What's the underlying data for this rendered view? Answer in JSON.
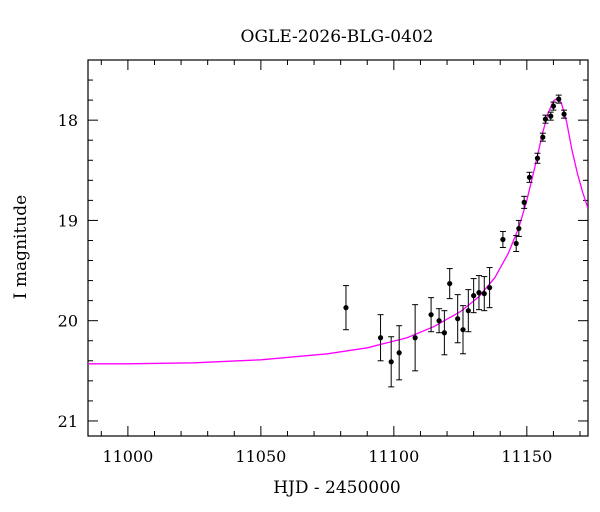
{
  "chart_data": {
    "type": "scatter",
    "title": "OGLE-2026-BLG-0402",
    "xlabel": "HJD - 2450000",
    "ylabel": "I magnitude",
    "xlim": [
      10985,
      11173
    ],
    "ylim": [
      21.15,
      17.4
    ],
    "y_inverted": true,
    "x_ticks": [
      11000,
      11050,
      11100,
      11150
    ],
    "y_ticks": [
      18,
      19,
      20,
      21
    ],
    "grid": false,
    "colors": {
      "points": "#000000",
      "model": "#ff00ff",
      "axes": "#000000"
    },
    "series": [
      {
        "type": "scatter",
        "points": [
          {
            "x": 11082,
            "y": 19.87,
            "err": 0.22
          },
          {
            "x": 11095,
            "y": 20.17,
            "err": 0.23
          },
          {
            "x": 11099,
            "y": 20.41,
            "err": 0.25
          },
          {
            "x": 11102,
            "y": 20.32,
            "err": 0.27
          },
          {
            "x": 11108,
            "y": 20.17,
            "err": 0.33
          },
          {
            "x": 11114,
            "y": 19.94,
            "err": 0.17
          },
          {
            "x": 11117,
            "y": 20.0,
            "err": 0.12
          },
          {
            "x": 11119,
            "y": 20.12,
            "err": 0.22
          },
          {
            "x": 11121,
            "y": 19.63,
            "err": 0.15
          },
          {
            "x": 11124,
            "y": 19.98,
            "err": 0.24
          },
          {
            "x": 11126,
            "y": 20.09,
            "err": 0.24
          },
          {
            "x": 11128,
            "y": 19.9,
            "err": 0.21
          },
          {
            "x": 11130,
            "y": 19.75,
            "err": 0.17
          },
          {
            "x": 11132,
            "y": 19.72,
            "err": 0.17
          },
          {
            "x": 11134,
            "y": 19.73,
            "err": 0.17
          },
          {
            "x": 11136,
            "y": 19.67,
            "err": 0.2
          },
          {
            "x": 11141,
            "y": 19.19,
            "err": 0.08
          },
          {
            "x": 11146,
            "y": 19.23,
            "err": 0.08
          },
          {
            "x": 11147,
            "y": 19.08,
            "err": 0.08
          },
          {
            "x": 11149,
            "y": 18.82,
            "err": 0.06
          },
          {
            "x": 11151,
            "y": 18.57,
            "err": 0.05
          },
          {
            "x": 11154,
            "y": 18.38,
            "err": 0.05
          },
          {
            "x": 11156,
            "y": 18.17,
            "err": 0.04
          },
          {
            "x": 11157,
            "y": 17.99,
            "err": 0.04
          },
          {
            "x": 11159,
            "y": 17.96,
            "err": 0.04
          },
          {
            "x": 11160,
            "y": 17.86,
            "err": 0.04
          },
          {
            "x": 11162,
            "y": 17.79,
            "err": 0.04
          },
          {
            "x": 11164,
            "y": 17.94,
            "err": 0.04
          }
        ]
      },
      {
        "type": "line",
        "points": [
          {
            "x": 10985,
            "y": 20.43
          },
          {
            "x": 11000,
            "y": 20.43
          },
          {
            "x": 11025,
            "y": 20.42
          },
          {
            "x": 11050,
            "y": 20.39
          },
          {
            "x": 11075,
            "y": 20.33
          },
          {
            "x": 11090,
            "y": 20.27
          },
          {
            "x": 11105,
            "y": 20.17
          },
          {
            "x": 11115,
            "y": 20.06
          },
          {
            "x": 11125,
            "y": 19.91
          },
          {
            "x": 11132,
            "y": 19.76
          },
          {
            "x": 11138,
            "y": 19.57
          },
          {
            "x": 11143,
            "y": 19.33
          },
          {
            "x": 11147,
            "y": 19.07
          },
          {
            "x": 11150,
            "y": 18.8
          },
          {
            "x": 11153,
            "y": 18.47
          },
          {
            "x": 11156,
            "y": 18.12
          },
          {
            "x": 11158,
            "y": 17.93
          },
          {
            "x": 11160,
            "y": 17.81
          },
          {
            "x": 11161.5,
            "y": 17.78
          },
          {
            "x": 11163,
            "y": 17.83
          },
          {
            "x": 11165,
            "y": 18.02
          },
          {
            "x": 11167,
            "y": 18.3
          },
          {
            "x": 11169,
            "y": 18.53
          },
          {
            "x": 11171,
            "y": 18.72
          },
          {
            "x": 11173,
            "y": 18.88
          }
        ]
      }
    ]
  }
}
